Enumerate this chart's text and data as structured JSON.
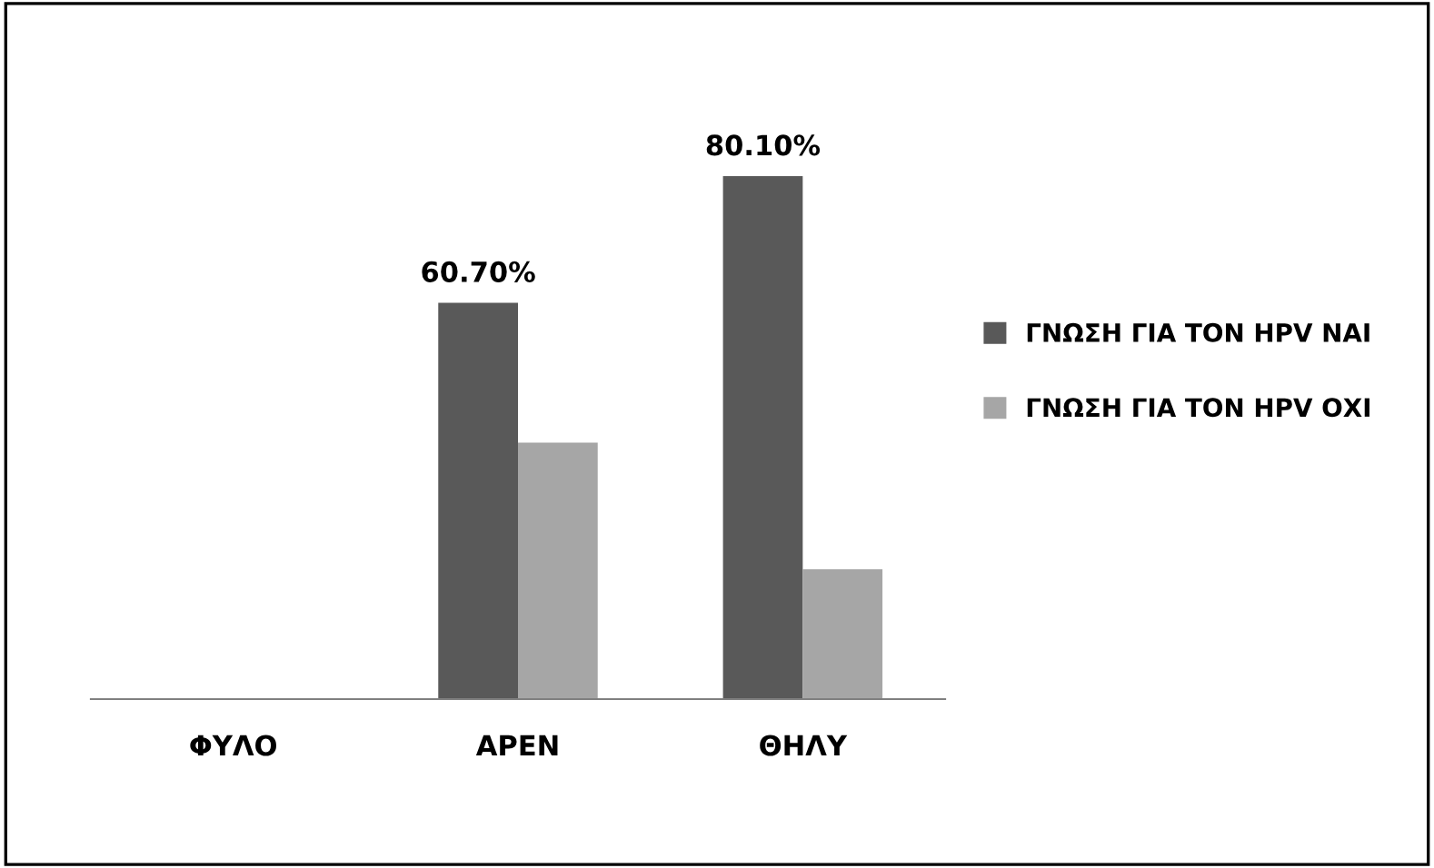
{
  "chart_data": {
    "type": "bar",
    "categories": [
      "ΦΥΛΟ",
      "ΑΡΕΝ",
      "ΘΗΛΥ"
    ],
    "series": [
      {
        "name": "ΓΝΩΣΗ ΓΙΑ ΤΟΝ HPV ΝΑΙ",
        "color": "#595959",
        "values": [
          null,
          60.7,
          80.1
        ],
        "value_labels": [
          null,
          "60.70%",
          "80.10%"
        ]
      },
      {
        "name": "ΓΝΩΣΗ ΓΙΑ ΤΟΝ HPV ΟΧΙ",
        "color": "#a6a6a6",
        "values": [
          null,
          39.3,
          19.9
        ]
      }
    ],
    "tick_labels": "x",
    "grid": false,
    "legend": "right"
  }
}
